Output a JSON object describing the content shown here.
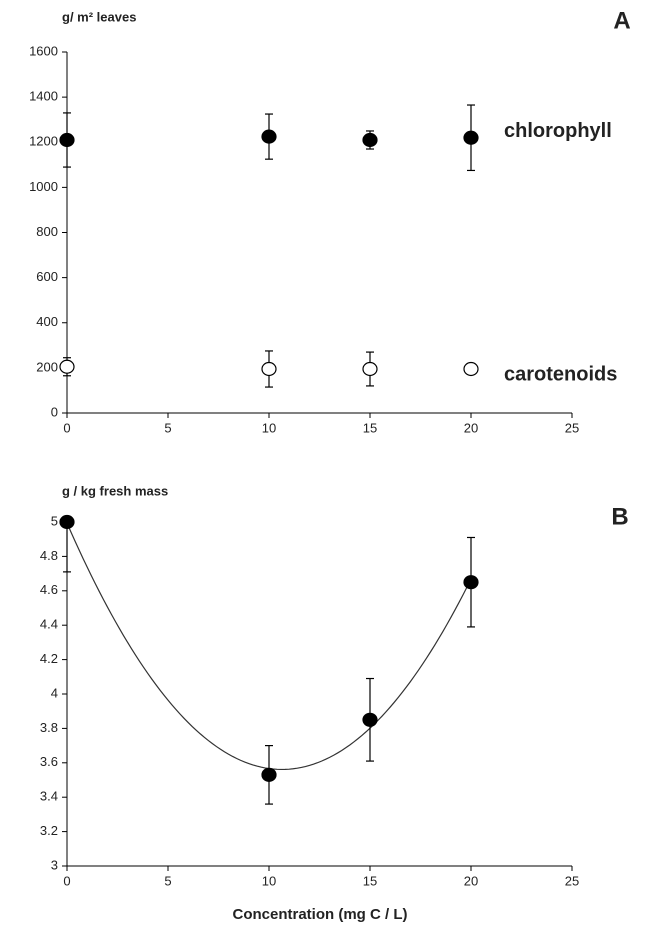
{
  "chart_data": [
    {
      "type": "scatter",
      "panel_label": "A",
      "y_label": "g/ m² leaves",
      "x": [
        0,
        10,
        15,
        20
      ],
      "series": [
        {
          "name": "chlorophyll",
          "color": "#000000",
          "values": [
            1210,
            1225,
            1210,
            1220
          ],
          "errors": [
            120,
            100,
            40,
            145
          ]
        },
        {
          "name": "carotenoids",
          "color": "#ffffff",
          "values": [
            205,
            195,
            195,
            195
          ],
          "errors": [
            40,
            80,
            75,
            10
          ]
        }
      ],
      "xlim": [
        0,
        25
      ],
      "xticks": [
        0,
        5,
        10,
        15,
        20,
        25
      ],
      "ylim": [
        0,
        1600
      ],
      "yticks": [
        0,
        200,
        400,
        600,
        800,
        1000,
        1200,
        1400,
        1600
      ]
    },
    {
      "type": "scatter",
      "panel_label": "B",
      "y_label": "g / kg fresh mass",
      "x_label": "Concentration (mg C / L)",
      "x": [
        0,
        10,
        15,
        20
      ],
      "series": [
        {
          "color": "#000000",
          "values": [
            5.0,
            3.53,
            3.85,
            4.65
          ],
          "errors": [
            0.29,
            0.17,
            0.24,
            0.26
          ]
        }
      ],
      "trendline": "poly2",
      "xlim": [
        0,
        25
      ],
      "xticks": [
        0,
        5,
        10,
        15,
        20,
        25
      ],
      "ylim": [
        3,
        5
      ],
      "yticks": [
        3,
        3.2,
        3.4,
        3.6,
        3.8,
        4,
        4.2,
        4.4,
        4.6,
        4.8,
        5
      ]
    }
  ]
}
